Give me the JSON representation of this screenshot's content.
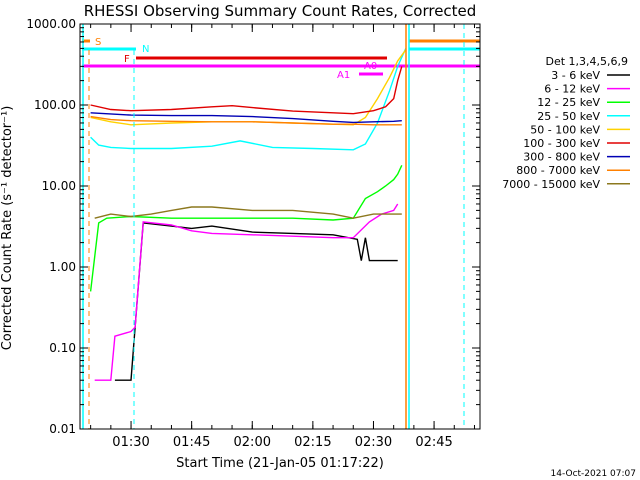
{
  "chart_data": {
    "type": "line",
    "title": "RHESSI Observing Summary Count Rates, Corrected",
    "xlabel": "Start Time (21-Jan-05 01:17:22)",
    "ylabel": "Corrected Count Rate (s⁻¹ detector⁻¹)",
    "footer": "14-Oct-2021 07:07",
    "yscale": "log",
    "ylim": [
      0.01,
      1000
    ],
    "xlim": [
      "01:17:22",
      "02:56:22"
    ],
    "xticks": [
      "01:30",
      "01:45",
      "02:00",
      "02:15",
      "02:30",
      "02:45"
    ],
    "yticks": [
      "0.01",
      "0.10",
      "1.00",
      "10.00",
      "100.00",
      "1000.00"
    ],
    "legend_title": "Det 1,3,4,5,6,9",
    "legend_position": "right",
    "flags": [
      {
        "label": "S",
        "color": "#ff8000"
      },
      {
        "label": "N",
        "color": "#00ffff"
      },
      {
        "label": "F",
        "color": "#e00000"
      },
      {
        "label": "A0",
        "color": "#ff00ff"
      },
      {
        "label": "A1",
        "color": "#ff00ff"
      }
    ],
    "series": [
      {
        "name": "3 - 6 keV",
        "color": "#000000",
        "x": [
          "01:26",
          "01:30",
          "01:33",
          "01:40",
          "01:45",
          "01:50",
          "02:00",
          "02:10",
          "02:20",
          "02:26",
          "02:27",
          "02:28",
          "02:29",
          "02:30",
          "02:32",
          "02:34",
          "02:35",
          "02:36"
        ],
        "y": [
          0.04,
          0.04,
          3.5,
          3.2,
          3.0,
          3.2,
          2.7,
          2.6,
          2.5,
          2.2,
          1.2,
          2.3,
          1.2,
          1.2,
          1.2,
          1.2,
          1.2,
          1.2
        ]
      },
      {
        "name": "6 - 12 keV",
        "color": "#ff00ff",
        "x": [
          "01:21",
          "01:25",
          "01:26",
          "01:30",
          "01:31",
          "01:33",
          "01:40",
          "01:45",
          "01:50",
          "02:00",
          "02:10",
          "02:20",
          "02:25",
          "02:29",
          "02:32",
          "02:35",
          "02:36"
        ],
        "y": [
          0.04,
          0.04,
          0.14,
          0.16,
          0.18,
          3.6,
          3.3,
          2.8,
          2.6,
          2.5,
          2.4,
          2.3,
          2.3,
          3.6,
          4.5,
          5.0,
          6.0
        ]
      },
      {
        "name": "12 - 25 keV",
        "color": "#00ff00",
        "x": [
          "01:20",
          "01:22",
          "01:24",
          "01:30",
          "01:40",
          "01:50",
          "02:00",
          "02:10",
          "02:20",
          "02:25",
          "02:28",
          "02:31",
          "02:33",
          "02:35",
          "02:36",
          "02:37"
        ],
        "y": [
          0.5,
          3.5,
          4.0,
          4.2,
          4.0,
          4.0,
          4.0,
          4.0,
          3.8,
          4.0,
          7.0,
          8.5,
          10,
          12,
          14,
          18
        ]
      },
      {
        "name": "25 - 50 keV",
        "color": "#00ffff",
        "x": [
          "01:20",
          "01:22",
          "01:25",
          "01:30",
          "01:40",
          "01:50",
          "01:57",
          "02:05",
          "02:15",
          "02:25",
          "02:28",
          "02:31",
          "02:34",
          "02:36",
          "02:38"
        ],
        "y": [
          40,
          32,
          30,
          29,
          29,
          31,
          36,
          30,
          29,
          28,
          33,
          60,
          150,
          300,
          500
        ]
      },
      {
        "name": "50 - 100 keV",
        "color": "#ffd200",
        "x": [
          "01:20",
          "01:25",
          "01:30",
          "01:40",
          "01:50",
          "02:00",
          "02:10",
          "02:20",
          "02:25",
          "02:28",
          "02:31",
          "02:34",
          "02:36",
          "02:38"
        ],
        "y": [
          70,
          62,
          57,
          60,
          62,
          62,
          60,
          58,
          57,
          70,
          120,
          220,
          350,
          480
        ]
      },
      {
        "name": "100 - 300 keV",
        "color": "#e00000",
        "x": [
          "01:20",
          "01:25",
          "01:30",
          "01:40",
          "01:50",
          "01:55",
          "02:00",
          "02:10",
          "02:20",
          "02:25",
          "02:30",
          "02:33",
          "02:35",
          "02:36",
          "02:37"
        ],
        "y": [
          100,
          88,
          85,
          88,
          95,
          98,
          93,
          84,
          80,
          78,
          85,
          95,
          120,
          200,
          300
        ]
      },
      {
        "name": "300 - 800 keV",
        "color": "#0000b4",
        "x": [
          "01:20",
          "01:30",
          "01:40",
          "01:50",
          "02:00",
          "02:10",
          "02:20",
          "02:25",
          "02:30",
          "02:35",
          "02:37"
        ],
        "y": [
          80,
          75,
          74,
          74,
          72,
          68,
          63,
          61,
          62,
          63,
          64
        ]
      },
      {
        "name": "800 - 7000 keV",
        "color": "#ff8000",
        "x": [
          "01:20",
          "01:25",
          "01:30",
          "01:40",
          "01:50",
          "02:00",
          "02:10",
          "02:20",
          "02:25",
          "02:30",
          "02:35",
          "02:37"
        ],
        "y": [
          72,
          66,
          64,
          63,
          62,
          62,
          60,
          58,
          58,
          57,
          57,
          57
        ]
      },
      {
        "name": "7000 - 15000 keV",
        "color": "#8c781e",
        "x": [
          "01:21",
          "01:25",
          "01:30",
          "01:35",
          "01:40",
          "01:45",
          "01:50",
          "02:00",
          "02:10",
          "02:20",
          "02:25",
          "02:30",
          "02:35",
          "02:37"
        ],
        "y": [
          4.0,
          4.5,
          4.2,
          4.5,
          5.0,
          5.5,
          5.5,
          5.0,
          5.0,
          4.5,
          4.0,
          4.5,
          4.5,
          4.5
        ]
      }
    ]
  }
}
